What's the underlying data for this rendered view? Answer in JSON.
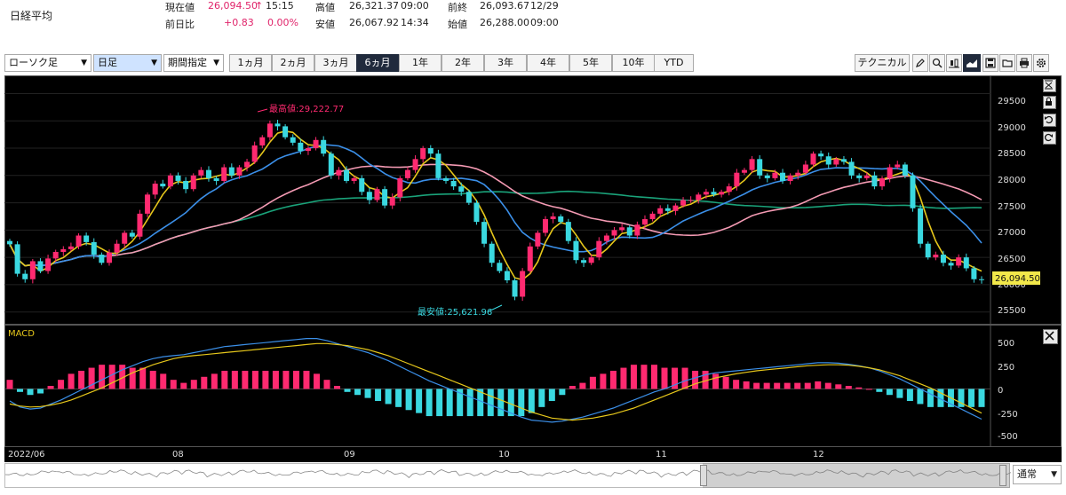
{
  "header": {
    "title": "日経平均",
    "current_label": "現在値",
    "current_value": "26,094.50",
    "current_arrow": "↑",
    "current_time": "15:15",
    "change_label": "前日比",
    "change_value": "+0.83",
    "change_pct": "0.00%",
    "high_label": "高値",
    "high_value": "26,321.37",
    "high_time": "09:00",
    "low_label": "安値",
    "low_value": "26,067.92",
    "low_time": "14:34",
    "prev_close_label": "前終",
    "prev_close_value": "26,093.67",
    "prev_close_date": "12/29",
    "open_label": "始値",
    "open_value": "26,288.00",
    "open_time": "09:00"
  },
  "toolbar": {
    "chart_type": "ローソク足",
    "timeframe": "日足",
    "period_mode": "期間指定",
    "periods": [
      "1ヵ月",
      "2ヵ月",
      "3ヵ月",
      "6ヵ月",
      "1年",
      "2年",
      "3年",
      "4年",
      "5年",
      "10年",
      "YTD"
    ],
    "active_period": "6ヵ月",
    "technical_label": "テクニカル",
    "icons": [
      "pencil-icon",
      "zoom-icon",
      "candlestick-icon",
      "area-chart-icon",
      "save-icon",
      "folder-icon",
      "print-icon",
      "settings-icon"
    ]
  },
  "price_panel": {
    "y_ticks": [
      "29500",
      "29000",
      "28500",
      "28000",
      "27500",
      "27000",
      "26500",
      "26000",
      "25500"
    ],
    "high_annotation": "最高値:29,222.77",
    "low_annotation": "最安値:25,621.96",
    "last_price_label": "26,094.50"
  },
  "macd_panel": {
    "label": "MACD",
    "y_ticks": [
      "500",
      "250",
      "0",
      "-250",
      "-500"
    ]
  },
  "x_axis": {
    "labels": [
      "2022/06",
      "08",
      "09",
      "10",
      "11",
      "12"
    ]
  },
  "navigator": {
    "scale_option": "通常"
  },
  "colors": {
    "bull": "#ff2a70",
    "bear": "#3ad8e0",
    "ma_short": "#e6c71b",
    "ma_mid": "#3b8fe8",
    "ma_long_pink": "#f49ab3",
    "ma_long_green": "#1aa37a",
    "macd_line": "#3b8fe8",
    "signal_line": "#e6c71b"
  },
  "chart_data": {
    "type": "candlestick",
    "y_unit": "JPY",
    "ylim": [
      25300,
      29800
    ],
    "macd_ylim": [
      -560,
      620
    ],
    "high": 29222.77,
    "low": 25621.96,
    "last": 26094.5,
    "closes": [
      26740,
      26200,
      26100,
      26430,
      26250,
      26480,
      26600,
      26650,
      26700,
      26900,
      26780,
      26550,
      26400,
      26590,
      26750,
      26950,
      26880,
      27300,
      27650,
      27850,
      27800,
      28000,
      27900,
      27750,
      28000,
      28100,
      27950,
      27900,
      28150,
      28000,
      28150,
      28250,
      28550,
      28700,
      28950,
      28900,
      28700,
      28600,
      28450,
      28500,
      28650,
      28400,
      28000,
      28100,
      27900,
      27950,
      27700,
      27550,
      27750,
      27450,
      27600,
      27950,
      28100,
      28300,
      28500,
      28400,
      27950,
      27900,
      27800,
      27700,
      27500,
      27150,
      26750,
      26400,
      26250,
      26080,
      25780,
      26250,
      26700,
      26950,
      27200,
      27250,
      27150,
      26800,
      26450,
      26400,
      26500,
      26800,
      26900,
      27000,
      27050,
      26900,
      27100,
      27200,
      27300,
      27400,
      27350,
      27450,
      27550,
      27550,
      27650,
      27700,
      27650,
      27700,
      27800,
      28050,
      28100,
      28300,
      28000,
      27950,
      28050,
      27900,
      28000,
      28050,
      28200,
      28400,
      28350,
      28200,
      28300,
      28250,
      28000,
      27950,
      28000,
      27800,
      27950,
      28150,
      28200,
      28000,
      27400,
      26750,
      26500,
      26550,
      26400,
      26350,
      26500,
      26300,
      26100,
      26094.5
    ],
    "macd": [
      -120,
      -180,
      -200,
      -190,
      -150,
      -110,
      -60,
      -10,
      40,
      90,
      140,
      190,
      230,
      270,
      300,
      320,
      330,
      340,
      360,
      380,
      400,
      420,
      430,
      440,
      450,
      460,
      470,
      480,
      490,
      500,
      500,
      480,
      450,
      420,
      390,
      360,
      320,
      280,
      230,
      180,
      130,
      80,
      40,
      0,
      -40,
      -80,
      -120,
      -160,
      -200,
      -240,
      -280,
      -310,
      -320,
      -330,
      -320,
      -300,
      -280,
      -250,
      -220,
      -190,
      -150,
      -110,
      -70,
      -30,
      0,
      40,
      80,
      110,
      140,
      160,
      170,
      180,
      190,
      200,
      210,
      220,
      230,
      240,
      250,
      260,
      260,
      255,
      245,
      230,
      210,
      180,
      140,
      100,
      50,
      0,
      -50,
      -100,
      -150,
      -200,
      -250,
      -300
    ],
    "signal": [
      -150,
      -170,
      -180,
      -175,
      -160,
      -140,
      -110,
      -70,
      -30,
      10,
      60,
      110,
      160,
      200,
      240,
      270,
      300,
      320,
      330,
      340,
      350,
      360,
      370,
      380,
      390,
      400,
      410,
      420,
      430,
      440,
      450,
      450,
      440,
      430,
      410,
      390,
      360,
      330,
      290,
      250,
      210,
      170,
      130,
      90,
      50,
      10,
      -30,
      -70,
      -110,
      -150,
      -190,
      -230,
      -260,
      -290,
      -300,
      -310,
      -300,
      -290,
      -270,
      -250,
      -220,
      -190,
      -150,
      -110,
      -70,
      -30,
      10,
      50,
      80,
      110,
      130,
      150,
      165,
      180,
      190,
      200,
      210,
      220,
      230,
      235,
      240,
      240,
      235,
      225,
      210,
      190,
      160,
      130,
      90,
      50,
      10,
      -40,
      -90,
      -140,
      -190,
      -240
    ]
  }
}
